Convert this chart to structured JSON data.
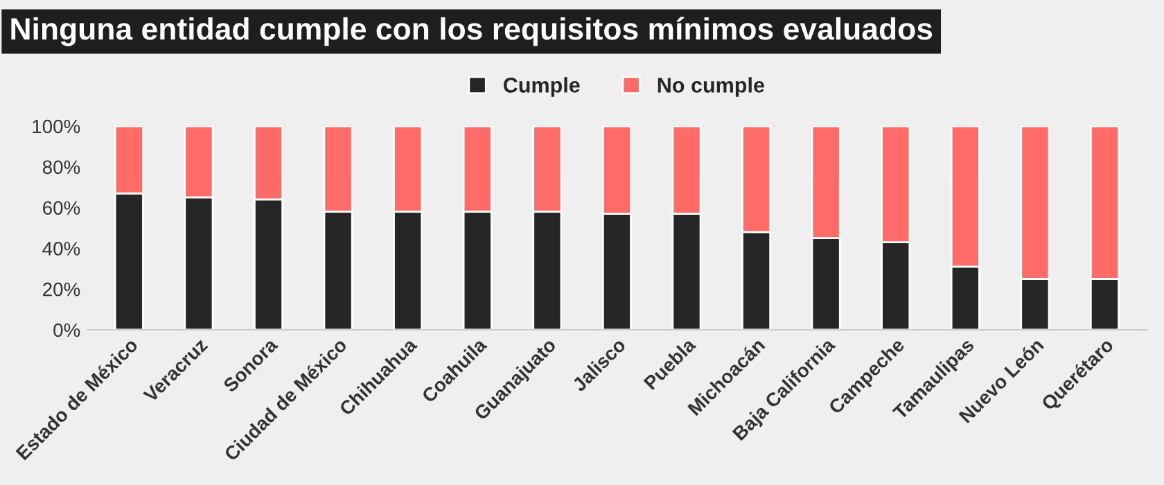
{
  "chart_data": {
    "type": "bar",
    "stacked": true,
    "title": "Ninguna entidad cumple con los requisitos mínimos evaluados",
    "categories": [
      "Estado de México",
      "Veracruz",
      "Sonora",
      "Ciudad de México",
      "Chihuahua",
      "Coahuila",
      "Guanajuato",
      "Jalisco",
      "Puebla",
      "Michoacán",
      "Baja California",
      "Campeche",
      "Tamaulipas",
      "Nuevo León",
      "Querétaro"
    ],
    "series": [
      {
        "name": "Cumple",
        "color": "#262626",
        "values": [
          67,
          65,
          64,
          58,
          58,
          58,
          58,
          57,
          57,
          48,
          45,
          43,
          31,
          25,
          25
        ]
      },
      {
        "name": "No cumple",
        "color": "#ff6b66",
        "values": [
          33,
          35,
          36,
          42,
          42,
          42,
          42,
          43,
          43,
          52,
          55,
          57,
          69,
          75,
          75
        ]
      }
    ],
    "ylim": [
      0,
      100
    ],
    "yticks": [
      {
        "value": 0,
        "label": "0%"
      },
      {
        "value": 20,
        "label": "20%"
      },
      {
        "value": 40,
        "label": "40%"
      },
      {
        "value": 60,
        "label": "60%"
      },
      {
        "value": 80,
        "label": "80%"
      },
      {
        "value": 100,
        "label": "100%"
      }
    ],
    "grid": false,
    "legend": "top"
  }
}
